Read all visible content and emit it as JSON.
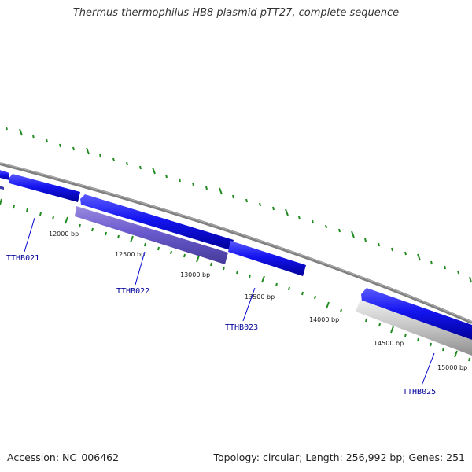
{
  "title": "Thermus thermophilus HB8 plasmid pTT27, complete sequence",
  "footer": {
    "accession": "Accession: NC_006462",
    "summary": "Topology: circular; Length: 256,992 bp; Genes: 251"
  },
  "colors": {
    "backbone": "#808080",
    "forward_gene": "#1010ee",
    "reverse_gene": "#6a5acd",
    "pseudo_gene": "#c0c0c0",
    "tick": "#228b22",
    "label": "#000099"
  },
  "ticks": [
    {
      "label": "12000 bp"
    },
    {
      "label": "12500 bp"
    },
    {
      "label": "13000 bp"
    },
    {
      "label": "13500 bp"
    },
    {
      "label": "14000 bp"
    },
    {
      "label": "14500 bp"
    },
    {
      "label": "15000 bp"
    }
  ],
  "genes": [
    {
      "label": "TTHB021"
    },
    {
      "label": "TTHB022"
    },
    {
      "label": "TTHB023"
    },
    {
      "label": "TTHB025"
    }
  ]
}
